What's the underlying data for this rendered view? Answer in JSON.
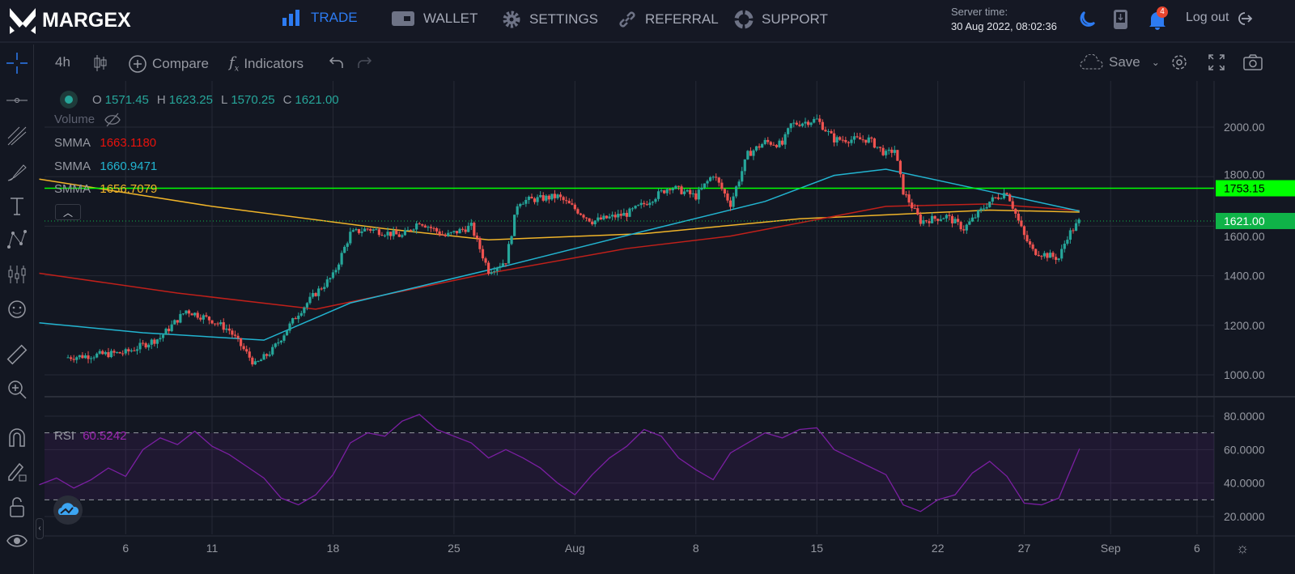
{
  "header": {
    "brand": "MARGEX",
    "nav": [
      {
        "label": "TRADE",
        "icon": "bar-chart-icon",
        "active": true
      },
      {
        "label": "WALLET",
        "icon": "wallet-icon"
      },
      {
        "label": "SETTINGS",
        "icon": "gear-icon"
      },
      {
        "label": "REFERRAL",
        "icon": "link-icon"
      },
      {
        "label": "SUPPORT",
        "icon": "lifebuoy-icon"
      }
    ],
    "server_time_label": "Server time:",
    "server_time": "30 Aug 2022, 08:02:36",
    "notifications": "4",
    "logout": "Log out"
  },
  "toolbar": {
    "interval": "4h",
    "compare": "Compare",
    "indicators": "Indicators",
    "save": "Save"
  },
  "legend": {
    "o_label": "O",
    "o": "1571.45",
    "h_label": "H",
    "h": "1623.25",
    "l_label": "L",
    "l": "1570.25",
    "c_label": "C",
    "c": "1621.00",
    "volume": "Volume",
    "smma": [
      {
        "label": "SMMA",
        "value": "1663.1180",
        "color": "#e8120c"
      },
      {
        "label": "SMMA",
        "value": "1660.9471",
        "color": "#22b4d0"
      },
      {
        "label": "SMMA",
        "value": "1656.7079",
        "color": "#f0b429"
      }
    ],
    "rsi_label": "RSI",
    "rsi_value": "60.5242"
  },
  "colors": {
    "up": "#26a69a",
    "down": "#ef5350",
    "rsi": "#7b1fa2",
    "hline": "#00ff00",
    "last": "#0fb348"
  },
  "chart_data": {
    "type": "candlestick",
    "price_axis": {
      "ticks": [
        "2000.00",
        "1800.00",
        "1600.00",
        "1400.00",
        "1200.00",
        "1000.00"
      ],
      "values": [
        2000,
        1800,
        1600,
        1400,
        1200,
        1000
      ]
    },
    "rsi_axis": {
      "ticks": [
        "80.0000",
        "60.0000",
        "40.0000",
        "20.0000"
      ],
      "values": [
        80,
        60,
        40,
        20
      ],
      "bands": [
        70,
        30
      ]
    },
    "x_axis": {
      "labels": [
        "6",
        "11",
        "18",
        "25",
        "Aug",
        "8",
        "15",
        "22",
        "27",
        "Sep",
        "6"
      ],
      "days": [
        6,
        11,
        18,
        25,
        32,
        39,
        46,
        53,
        58,
        63,
        68
      ]
    },
    "horizontal_line": {
      "value": 1753.15,
      "label": "1753.15"
    },
    "last_price": {
      "value": 1621.0,
      "label": "1621.00"
    },
    "price_path": [
      [
        1.5,
        1070
      ],
      [
        5,
        1090
      ],
      [
        7,
        1150
      ],
      [
        8.5,
        1260
      ],
      [
        10,
        1220
      ],
      [
        11,
        1180
      ],
      [
        12.5,
        1040
      ],
      [
        13.5,
        1100
      ],
      [
        15,
        1250
      ],
      [
        16,
        1330
      ],
      [
        17,
        1400
      ],
      [
        18,
        1570
      ],
      [
        19,
        1590
      ],
      [
        21,
        1560
      ],
      [
        22,
        1620
      ],
      [
        23.5,
        1560
      ],
      [
        25,
        1600
      ],
      [
        26,
        1420
      ],
      [
        27,
        1460
      ],
      [
        27.7,
        1700
      ],
      [
        30,
        1720
      ],
      [
        32,
        1620
      ],
      [
        34,
        1650
      ],
      [
        35,
        1690
      ],
      [
        36.5,
        1760
      ],
      [
        38,
        1720
      ],
      [
        39,
        1810
      ],
      [
        40,
        1690
      ],
      [
        41,
        1890
      ],
      [
        42,
        1940
      ],
      [
        43,
        1930
      ],
      [
        43.5,
        2010
      ],
      [
        45,
        2030
      ],
      [
        46,
        1950
      ],
      [
        48,
        1950
      ],
      [
        49,
        1890
      ],
      [
        49.5,
        1910
      ],
      [
        50,
        1740
      ],
      [
        51,
        1620
      ],
      [
        52.5,
        1640
      ],
      [
        53.5,
        1590
      ],
      [
        55,
        1700
      ],
      [
        56,
        1740
      ],
      [
        57,
        1560
      ],
      [
        57.5,
        1500
      ],
      [
        59,
        1470
      ],
      [
        59.5,
        1560
      ],
      [
        60.2,
        1621
      ]
    ],
    "smma_series": [
      {
        "color": "#f0b429",
        "points": [
          [
            0,
            1790
          ],
          [
            10,
            1680
          ],
          [
            20,
            1590
          ],
          [
            26,
            1545
          ],
          [
            35,
            1570
          ],
          [
            44,
            1630
          ],
          [
            55,
            1665
          ],
          [
            60.2,
            1657
          ]
        ]
      },
      {
        "color": "#c0201a",
        "points": [
          [
            0,
            1410
          ],
          [
            8,
            1330
          ],
          [
            16,
            1265
          ],
          [
            26,
            1410
          ],
          [
            34,
            1510
          ],
          [
            40,
            1560
          ],
          [
            49,
            1680
          ],
          [
            55,
            1690
          ],
          [
            60.2,
            1663
          ]
        ]
      },
      {
        "color": "#22b4d0",
        "points": [
          [
            0,
            1210
          ],
          [
            6,
            1170
          ],
          [
            13,
            1140
          ],
          [
            18,
            1290
          ],
          [
            27,
            1440
          ],
          [
            35,
            1580
          ],
          [
            42,
            1700
          ],
          [
            46,
            1805
          ],
          [
            49,
            1830
          ],
          [
            55,
            1740
          ],
          [
            60.2,
            1661
          ]
        ]
      }
    ],
    "rsi_series": [
      [
        0,
        39
      ],
      [
        1,
        43
      ],
      [
        2,
        37
      ],
      [
        3,
        42
      ],
      [
        4,
        49
      ],
      [
        5,
        44
      ],
      [
        6,
        60
      ],
      [
        7,
        67
      ],
      [
        8,
        63
      ],
      [
        9,
        71
      ],
      [
        10,
        62
      ],
      [
        11,
        57
      ],
      [
        12,
        50
      ],
      [
        13,
        43
      ],
      [
        14,
        31
      ],
      [
        15,
        27
      ],
      [
        16,
        33
      ],
      [
        17,
        45
      ],
      [
        18,
        64
      ],
      [
        19,
        70
      ],
      [
        20,
        68
      ],
      [
        21,
        77
      ],
      [
        22,
        81
      ],
      [
        23,
        72
      ],
      [
        24,
        68
      ],
      [
        25,
        64
      ],
      [
        26,
        55
      ],
      [
        27,
        60
      ],
      [
        28,
        55
      ],
      [
        29,
        49
      ],
      [
        30,
        40
      ],
      [
        31,
        33
      ],
      [
        32,
        45
      ],
      [
        33,
        55
      ],
      [
        34,
        62
      ],
      [
        35,
        72
      ],
      [
        36,
        68
      ],
      [
        37,
        55
      ],
      [
        38,
        48
      ],
      [
        39,
        42
      ],
      [
        40,
        58
      ],
      [
        41,
        64
      ],
      [
        42,
        70
      ],
      [
        43,
        67
      ],
      [
        44,
        72
      ],
      [
        45,
        73
      ],
      [
        46,
        60
      ],
      [
        47,
        55
      ],
      [
        48,
        50
      ],
      [
        49,
        45
      ],
      [
        50,
        27
      ],
      [
        51,
        23
      ],
      [
        52,
        30
      ],
      [
        53,
        33
      ],
      [
        54,
        46
      ],
      [
        55,
        53
      ],
      [
        56,
        44
      ],
      [
        57,
        28
      ],
      [
        58,
        27
      ],
      [
        59,
        31
      ],
      [
        60.2,
        60.5
      ]
    ]
  }
}
